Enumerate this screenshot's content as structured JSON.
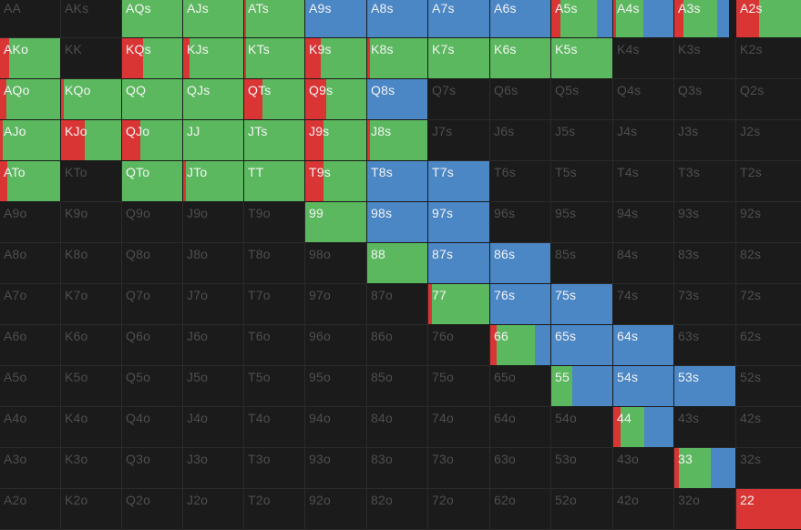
{
  "colors": {
    "raise": "#d93535",
    "call": "#5cb85f",
    "allin": "#4b86c5",
    "fold": "#1b1b1c"
  },
  "ranks": [
    "A",
    "K",
    "Q",
    "J",
    "T",
    "9",
    "8",
    "7",
    "6",
    "5",
    "4",
    "3",
    "2"
  ],
  "hands": [
    [
      {
        "label": "AA"
      },
      {
        "label": "AKs"
      },
      {
        "label": "AQs",
        "call": 1.0
      },
      {
        "label": "AJs",
        "call": 1.0
      },
      {
        "label": "ATs",
        "raise": 0.03,
        "call": 0.97
      },
      {
        "label": "A9s",
        "allin": 1.0
      },
      {
        "label": "A8s",
        "allin": 1.0
      },
      {
        "label": "A7s",
        "allin": 1.0
      },
      {
        "label": "A6s",
        "allin": 1.0
      },
      {
        "label": "A5s",
        "raise": 0.15,
        "call": 0.6,
        "allin": 0.25
      },
      {
        "label": "A4s",
        "raise": 0.05,
        "call": 0.45,
        "allin": 0.5
      },
      {
        "label": "A3s",
        "raise": 0.15,
        "call": 0.55,
        "allin": 0.2,
        "fold": 0.1
      },
      {
        "label": "A2s",
        "raise": 0.35,
        "call": 0.65
      }
    ],
    [
      {
        "label": "AKo",
        "raise": 0.15,
        "call": 0.85
      },
      {
        "label": "KK"
      },
      {
        "label": "KQs",
        "raise": 0.35,
        "call": 0.65
      },
      {
        "label": "KJs",
        "raise": 0.1,
        "call": 0.9
      },
      {
        "label": "KTs",
        "raise": 0.03,
        "call": 0.97
      },
      {
        "label": "K9s",
        "raise": 0.25,
        "call": 0.75
      },
      {
        "label": "K8s",
        "raise": 0.05,
        "call": 0.95
      },
      {
        "label": "K7s",
        "call": 1.0
      },
      {
        "label": "K6s",
        "call": 1.0
      },
      {
        "label": "K5s",
        "call": 1.0
      },
      {
        "label": "K4s"
      },
      {
        "label": "K3s"
      },
      {
        "label": "K2s"
      }
    ],
    [
      {
        "label": "AQo",
        "raise": 0.1,
        "call": 0.9
      },
      {
        "label": "KQo",
        "raise": 0.05,
        "call": 0.95
      },
      {
        "label": "QQ",
        "call": 1.0
      },
      {
        "label": "QJs",
        "call": 1.0
      },
      {
        "label": "QTs",
        "raise": 0.3,
        "call": 0.7
      },
      {
        "label": "Q9s",
        "raise": 0.35,
        "call": 0.65
      },
      {
        "label": "Q8s",
        "allin": 1.0
      },
      {
        "label": "Q7s"
      },
      {
        "label": "Q6s"
      },
      {
        "label": "Q5s"
      },
      {
        "label": "Q4s"
      },
      {
        "label": "Q3s"
      },
      {
        "label": "Q2s"
      }
    ],
    [
      {
        "label": "AJo",
        "raise": 0.05,
        "call": 0.95
      },
      {
        "label": "KJo",
        "raise": 0.4,
        "call": 0.6
      },
      {
        "label": "QJo",
        "raise": 0.3,
        "call": 0.7
      },
      {
        "label": "JJ",
        "call": 1.0
      },
      {
        "label": "JTs",
        "call": 1.0
      },
      {
        "label": "J9s",
        "raise": 0.3,
        "call": 0.7
      },
      {
        "label": "J8s",
        "raise": 0.05,
        "call": 0.95
      },
      {
        "label": "J7s"
      },
      {
        "label": "J6s"
      },
      {
        "label": "J5s"
      },
      {
        "label": "J4s"
      },
      {
        "label": "J3s"
      },
      {
        "label": "J2s"
      }
    ],
    [
      {
        "label": "ATo",
        "raise": 0.12,
        "call": 0.88
      },
      {
        "label": "KTo"
      },
      {
        "label": "QTo",
        "call": 1.0
      },
      {
        "label": "JTo",
        "raise": 0.05,
        "call": 0.95
      },
      {
        "label": "TT",
        "call": 1.0
      },
      {
        "label": "T9s",
        "raise": 0.3,
        "call": 0.7
      },
      {
        "label": "T8s",
        "allin": 1.0
      },
      {
        "label": "T7s",
        "allin": 1.0
      },
      {
        "label": "T6s"
      },
      {
        "label": "T5s"
      },
      {
        "label": "T4s"
      },
      {
        "label": "T3s"
      },
      {
        "label": "T2s"
      }
    ],
    [
      {
        "label": "A9o"
      },
      {
        "label": "K9o"
      },
      {
        "label": "Q9o"
      },
      {
        "label": "J9o"
      },
      {
        "label": "T9o"
      },
      {
        "label": "99",
        "call": 1.0
      },
      {
        "label": "98s",
        "allin": 1.0
      },
      {
        "label": "97s",
        "allin": 1.0
      },
      {
        "label": "96s"
      },
      {
        "label": "95s"
      },
      {
        "label": "94s"
      },
      {
        "label": "93s"
      },
      {
        "label": "92s"
      }
    ],
    [
      {
        "label": "A8o"
      },
      {
        "label": "K8o"
      },
      {
        "label": "Q8o"
      },
      {
        "label": "J8o"
      },
      {
        "label": "T8o"
      },
      {
        "label": "98o"
      },
      {
        "label": "88",
        "call": 1.0
      },
      {
        "label": "87s",
        "allin": 1.0
      },
      {
        "label": "86s",
        "allin": 1.0
      },
      {
        "label": "85s"
      },
      {
        "label": "84s"
      },
      {
        "label": "83s"
      },
      {
        "label": "82s"
      }
    ],
    [
      {
        "label": "A7o"
      },
      {
        "label": "K7o"
      },
      {
        "label": "Q7o"
      },
      {
        "label": "J7o"
      },
      {
        "label": "T7o"
      },
      {
        "label": "97o"
      },
      {
        "label": "87o"
      },
      {
        "label": "77",
        "raise": 0.06,
        "call": 0.94
      },
      {
        "label": "76s",
        "allin": 1.0
      },
      {
        "label": "75s",
        "allin": 1.0
      },
      {
        "label": "74s"
      },
      {
        "label": "73s"
      },
      {
        "label": "72s"
      }
    ],
    [
      {
        "label": "A6o"
      },
      {
        "label": "K6o"
      },
      {
        "label": "Q6o"
      },
      {
        "label": "J6o"
      },
      {
        "label": "T6o"
      },
      {
        "label": "96o"
      },
      {
        "label": "86o"
      },
      {
        "label": "76o"
      },
      {
        "label": "66",
        "raise": 0.1,
        "call": 0.65,
        "allin": 0.25
      },
      {
        "label": "65s",
        "allin": 1.0
      },
      {
        "label": "64s",
        "allin": 1.0
      },
      {
        "label": "63s"
      },
      {
        "label": "62s"
      }
    ],
    [
      {
        "label": "A5o"
      },
      {
        "label": "K5o"
      },
      {
        "label": "Q5o"
      },
      {
        "label": "J5o"
      },
      {
        "label": "T5o"
      },
      {
        "label": "95o"
      },
      {
        "label": "85o"
      },
      {
        "label": "75o"
      },
      {
        "label": "65o"
      },
      {
        "label": "55",
        "call": 0.35,
        "allin": 0.65
      },
      {
        "label": "54s",
        "allin": 1.0
      },
      {
        "label": "53s",
        "allin": 1.0
      },
      {
        "label": "52s"
      }
    ],
    [
      {
        "label": "A4o"
      },
      {
        "label": "K4o"
      },
      {
        "label": "Q4o"
      },
      {
        "label": "J4o"
      },
      {
        "label": "T4o"
      },
      {
        "label": "94o"
      },
      {
        "label": "84o"
      },
      {
        "label": "74o"
      },
      {
        "label": "64o"
      },
      {
        "label": "54o"
      },
      {
        "label": "44",
        "raise": 0.12,
        "call": 0.4,
        "allin": 0.48
      },
      {
        "label": "43s"
      },
      {
        "label": "42s"
      }
    ],
    [
      {
        "label": "A3o"
      },
      {
        "label": "K3o"
      },
      {
        "label": "Q3o"
      },
      {
        "label": "J3o"
      },
      {
        "label": "T3o"
      },
      {
        "label": "93o"
      },
      {
        "label": "83o"
      },
      {
        "label": "73o"
      },
      {
        "label": "63o"
      },
      {
        "label": "53o"
      },
      {
        "label": "43o"
      },
      {
        "label": "33",
        "raise": 0.08,
        "call": 0.52,
        "allin": 0.4
      },
      {
        "label": "32s"
      }
    ],
    [
      {
        "label": "A2o"
      },
      {
        "label": "K2o"
      },
      {
        "label": "Q2o"
      },
      {
        "label": "J2o"
      },
      {
        "label": "T2o"
      },
      {
        "label": "92o"
      },
      {
        "label": "82o"
      },
      {
        "label": "72o"
      },
      {
        "label": "62o"
      },
      {
        "label": "52o"
      },
      {
        "label": "42o"
      },
      {
        "label": "32o"
      },
      {
        "label": "22",
        "raise": 1.0
      }
    ]
  ]
}
